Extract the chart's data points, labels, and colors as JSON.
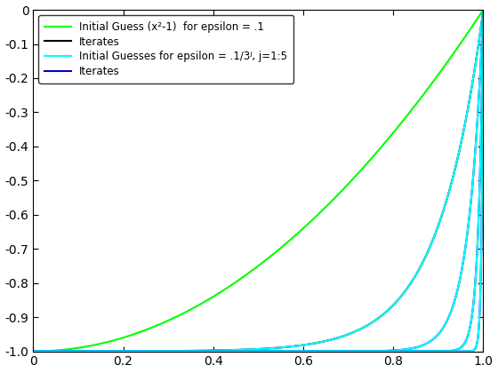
{
  "x_range": [
    0,
    1
  ],
  "n_points": 1000,
  "epsilon_0": 0.1,
  "green_color": "#00FF00",
  "black_color": "#000000",
  "cyan_color": "#00FFFF",
  "blue_color": "#0000CC",
  "legend_labels": [
    "Initial Guess (x²-1)  for epsilon = .1",
    "Iterates",
    "Initial Guesses for epsilon = .1/3ʲ, j=1:5",
    "Iterates"
  ],
  "xlim": [
    0,
    1
  ],
  "ylim": [
    -1,
    0
  ],
  "xticks": [
    0,
    0.2,
    0.4,
    0.6,
    0.8,
    1.0
  ],
  "yticks": [
    0,
    -0.1,
    -0.2,
    -0.3,
    -0.4,
    -0.5,
    -0.6,
    -0.7,
    -0.8,
    -0.9,
    -1.0
  ],
  "background_color": "#ffffff",
  "figsize": [
    5.6,
    4.2
  ],
  "dpi": 100
}
